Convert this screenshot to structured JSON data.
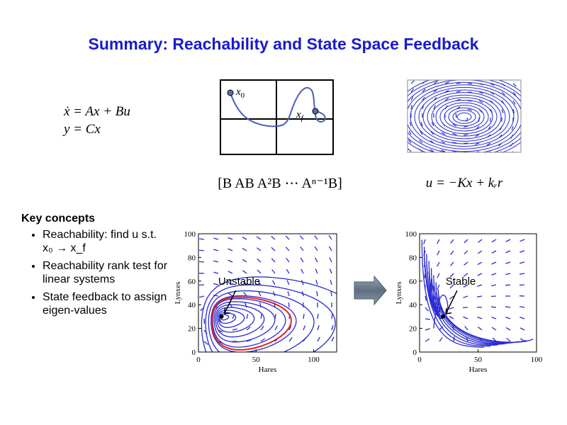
{
  "title": "Summary: Reachability and State Space Feedback",
  "equations": {
    "dynamics": "ẋ = Ax + Bu",
    "output": "y = Cx",
    "reachability_matrix": "[B  AB  A²B  ⋯  Aⁿ⁻¹B]",
    "feedback": "u = −Kx + kᵣr"
  },
  "reach_diagram": {
    "start": {
      "symbol": "x",
      "subscript": "0"
    },
    "end": {
      "symbol": "x",
      "subscript": "f"
    }
  },
  "key_concepts": {
    "heading": "Key concepts",
    "items": [
      "Reachability: find u s.t. x₀ → x_f",
      "Reachability rank test for linear systems",
      "State feedback to assign eigen-values"
    ]
  },
  "plots": [
    {
      "label": "Unstable",
      "xlabel": "Hares",
      "ylabel": "Lynxes",
      "xlim": [
        0,
        120
      ],
      "ylim": [
        0,
        100
      ],
      "xticks": [
        0,
        50,
        100
      ],
      "yticks": [
        0,
        20,
        40,
        60,
        80,
        100
      ]
    },
    {
      "label": "Stable",
      "xlabel": "Hares",
      "ylabel": "Lynxes",
      "xlim": [
        0,
        100
      ],
      "ylim": [
        0,
        100
      ],
      "xticks": [
        0,
        50,
        100
      ],
      "yticks": [
        0,
        20,
        40,
        60,
        80,
        100
      ]
    }
  ]
}
